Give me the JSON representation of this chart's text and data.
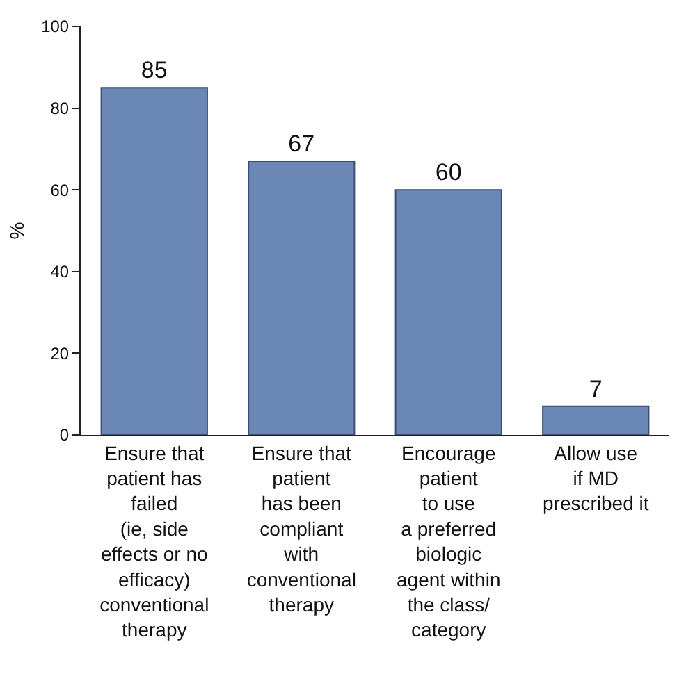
{
  "chart_data": {
    "type": "bar",
    "ylabel": "%",
    "categories": [
      "Ensure that\npatient has\nfailed\n(ie, side\neffects or no\nefficacy)\nconventional\ntherapy",
      "Ensure that\npatient\nhas been\ncompliant\nwith\nconventional\ntherapy",
      "Encourage\npatient\nto use\na preferred\nbiologic\nagent within\nthe class/\ncategory",
      "Allow use\nif MD\nprescribed it"
    ],
    "values": [
      85,
      67,
      60,
      7
    ],
    "color": "#6a87b5",
    "ylim": [
      0,
      100
    ],
    "yticks": [
      0,
      20,
      40,
      60,
      80,
      100
    ],
    "data_labels": true
  }
}
